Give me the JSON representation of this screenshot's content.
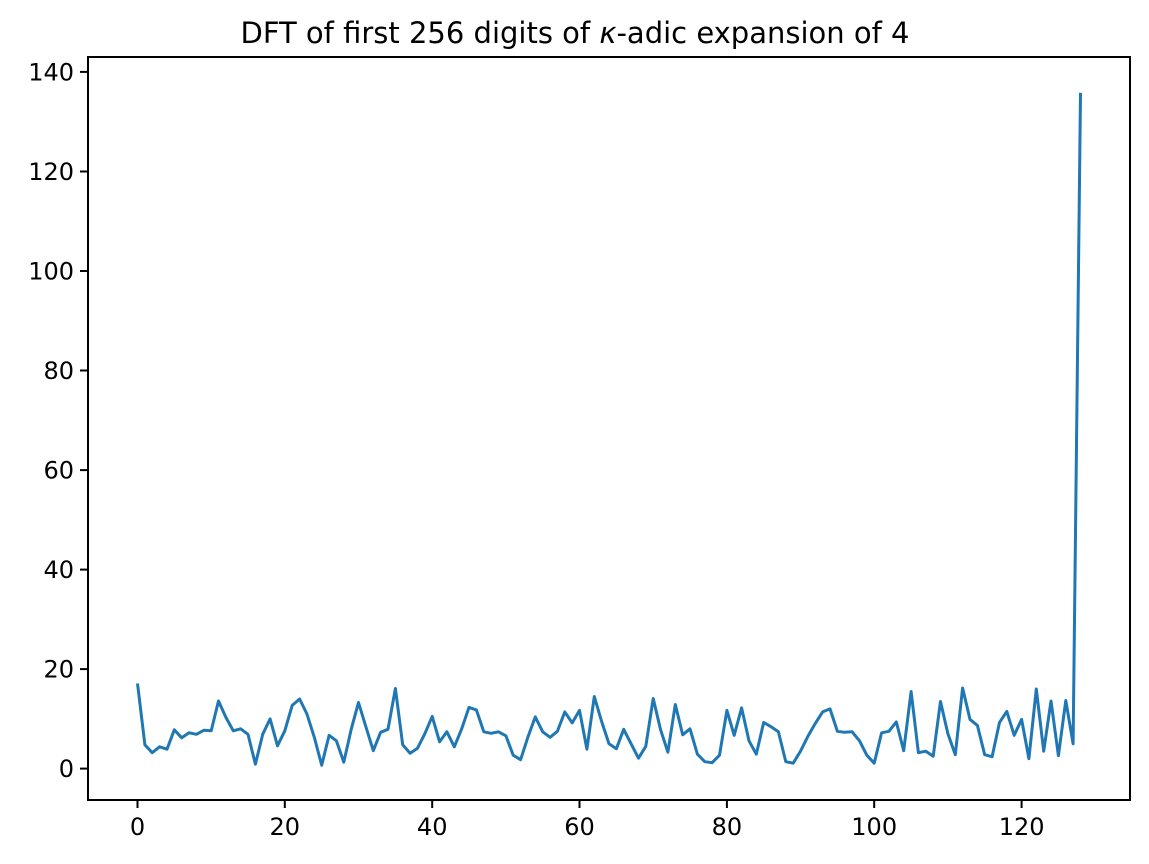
{
  "figure": {
    "title": {
      "prefix": "DFT of first 256 digits of ",
      "math": "κ",
      "suffix": "-adic expansion of 4",
      "full": "DFT of first 256 digits of κ-adic expansion of 4"
    },
    "background": "#ffffff",
    "spine_color": "#000000"
  },
  "chart_data": {
    "type": "line",
    "title": "DFT of first 256 digits of κ-adic expansion of 4",
    "xlabel": "",
    "ylabel": "",
    "x_start": 0,
    "x_step": 1,
    "values": [
      17.1,
      4.8,
      3.2,
      4.4,
      3.9,
      7.8,
      6.2,
      7.2,
      6.9,
      7.7,
      7.6,
      13.6,
      10.3,
      7.6,
      8.0,
      6.9,
      0.9,
      6.9,
      10.0,
      4.6,
      7.6,
      12.7,
      14.0,
      11.0,
      6.3,
      0.7,
      6.7,
      5.6,
      1.3,
      7.9,
      13.3,
      8.4,
      3.6,
      7.3,
      7.9,
      16.1,
      4.8,
      3.1,
      4.1,
      7.0,
      10.5,
      5.4,
      7.4,
      4.4,
      8.0,
      12.3,
      11.8,
      7.4,
      7.1,
      7.4,
      6.6,
      2.7,
      1.8,
      6.4,
      10.4,
      7.4,
      6.3,
      7.5,
      11.4,
      9.2,
      11.7,
      3.9,
      14.5,
      9.5,
      5.0,
      4.0,
      7.9,
      5.0,
      2.1,
      4.5,
      14.1,
      7.8,
      3.3,
      12.9,
      6.8,
      8.0,
      2.9,
      1.4,
      1.2,
      2.7,
      11.7,
      6.7,
      12.2,
      5.6,
      2.9,
      9.3,
      8.4,
      7.4,
      1.4,
      1.1,
      3.5,
      6.5,
      9.1,
      11.4,
      12.0,
      7.5,
      7.3,
      7.4,
      5.6,
      2.7,
      1.1,
      7.2,
      7.5,
      9.4,
      3.6,
      15.5,
      3.2,
      3.5,
      2.5,
      13.5,
      7.0,
      2.8,
      16.2,
      9.9,
      8.7,
      2.8,
      2.4,
      9.3,
      11.5,
      6.7,
      9.9,
      2.0,
      16.0,
      3.5,
      13.6,
      2.6,
      13.7,
      5.0,
      135.8
    ],
    "xlim": [
      -6.72,
      134.72
    ],
    "ylim": [
      -6.3,
      143.0
    ],
    "xticks": [
      0,
      20,
      40,
      60,
      80,
      100,
      120
    ],
    "xtick_labels": [
      "0",
      "20",
      "40",
      "60",
      "80",
      "100",
      "120"
    ],
    "yticks": [
      0,
      20,
      40,
      60,
      80,
      100,
      120,
      140
    ],
    "ytick_labels": [
      "0",
      "20",
      "40",
      "60",
      "80",
      "100",
      "120",
      "140"
    ],
    "grid": false,
    "legend": null,
    "line_color": "#1f77b4"
  }
}
